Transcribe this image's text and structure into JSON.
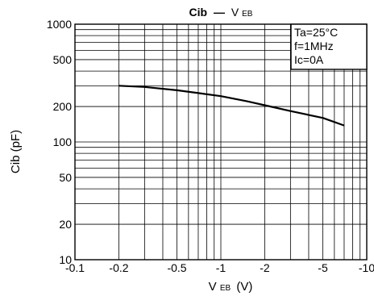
{
  "chart_data": {
    "type": "line",
    "title": {
      "main": "Cib",
      "dash": "—",
      "sym": "V",
      "sub": "EB"
    },
    "xlabel": {
      "sym": "V",
      "sub": "EB",
      "unit": "(V)"
    },
    "ylabel": "Cib (pF)",
    "xscale": "log",
    "yscale": "log",
    "xlim": [
      -0.1,
      -10
    ],
    "ylim": [
      10,
      1000
    ],
    "grid": true,
    "x_ticks": [
      -0.1,
      -0.2,
      -0.5,
      -1,
      -2,
      -5,
      -10
    ],
    "x_tick_labels": [
      "-0.1",
      "-0.2",
      "-0.5",
      "-1",
      "-2",
      "-5",
      "-10"
    ],
    "y_ticks": [
      10,
      20,
      50,
      100,
      200,
      500,
      1000
    ],
    "y_tick_labels": [
      "10",
      "20",
      "50",
      "100",
      "200",
      "500",
      "1000"
    ],
    "conditions": [
      "Ta=25°C",
      "f=1MHz",
      "Ic=0A"
    ],
    "conditions_placement": "top-right",
    "series": [
      {
        "x": [
          -0.2,
          -0.3,
          -0.5,
          -0.7,
          -1,
          -1.5,
          -2,
          -3,
          -5,
          -7
        ],
        "y": [
          300,
          293,
          275,
          260,
          245,
          222,
          205,
          183,
          160,
          138
        ]
      }
    ]
  }
}
